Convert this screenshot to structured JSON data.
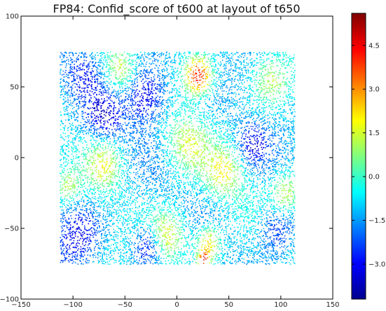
{
  "chart_data": {
    "type": "scatter",
    "title": "FP84: Confid_score of t600 at layout of t650",
    "xlabel": "",
    "ylabel": "",
    "xlim": [
      -150,
      150
    ],
    "ylim": [
      -100,
      100
    ],
    "x_ticks": [
      -150,
      -100,
      -50,
      0,
      50,
      100,
      150
    ],
    "y_ticks": [
      -100,
      -50,
      0,
      50,
      100
    ],
    "x_tick_labels": [
      "−150",
      "−100",
      "−50",
      "0",
      "50",
      "100",
      "150"
    ],
    "y_tick_labels": [
      "−100",
      "−50",
      "0",
      "50",
      "100"
    ],
    "grid": false,
    "colormap": "jet",
    "color_range": [
      -4.2,
      5.6
    ],
    "colorbar_ticks": [
      -3.0,
      -1.5,
      0.0,
      1.5,
      3.0,
      4.5
    ],
    "colorbar_tick_labels": [
      "−3.0",
      "−1.5",
      "0.0",
      "1.5",
      "3.0",
      "4.5"
    ],
    "point_region": {
      "x": [
        -113,
        113
      ],
      "y": [
        -75,
        75
      ]
    },
    "point_count_approx": 12000,
    "hotspots": [
      {
        "x": -30,
        "y": 45,
        "value": -3.8,
        "spread": 14
      },
      {
        "x": -28,
        "y": -62,
        "value": -3.5,
        "spread": 10
      },
      {
        "x": -95,
        "y": -55,
        "value": -3.0,
        "spread": 15
      },
      {
        "x": -70,
        "y": 30,
        "value": -3.0,
        "spread": 12
      },
      {
        "x": 72,
        "y": 10,
        "value": -3.0,
        "spread": 10
      },
      {
        "x": 95,
        "y": -50,
        "value": -3.0,
        "spread": 12
      },
      {
        "x": -90,
        "y": 60,
        "value": -2.5,
        "spread": 12
      },
      {
        "x": 20,
        "y": 58,
        "value": 4.5,
        "spread": 9
      },
      {
        "x": 30,
        "y": -60,
        "value": 2.5,
        "spread": 8
      },
      {
        "x": 25,
        "y": -72,
        "value": 4.0,
        "spread": 4
      },
      {
        "x": -55,
        "y": 62,
        "value": 1.5,
        "spread": 10
      },
      {
        "x": 90,
        "y": 55,
        "value": 1.0,
        "spread": 12
      },
      {
        "x": -70,
        "y": -5,
        "value": 1.5,
        "spread": 12
      },
      {
        "x": 10,
        "y": 10,
        "value": 1.2,
        "spread": 14
      },
      {
        "x": 45,
        "y": -10,
        "value": 1.5,
        "spread": 12
      },
      {
        "x": -10,
        "y": -55,
        "value": 2.0,
        "spread": 12
      },
      {
        "x": 105,
        "y": -25,
        "value": 1.5,
        "spread": 10
      },
      {
        "x": -105,
        "y": -20,
        "value": 1.0,
        "spread": 8
      }
    ]
  }
}
